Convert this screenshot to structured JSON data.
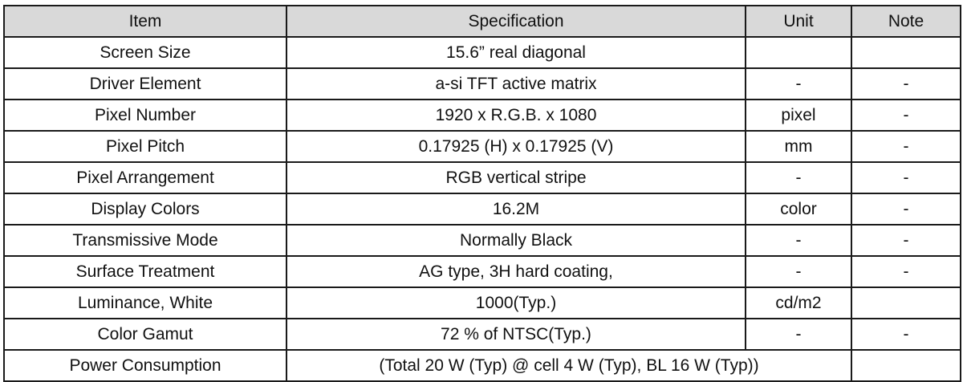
{
  "table": {
    "headers": {
      "item": "Item",
      "specification": "Specification",
      "unit": "Unit",
      "note": "Note"
    },
    "rows": [
      {
        "item": "Screen Size",
        "specification": "15.6” real diagonal",
        "unit": "",
        "note": ""
      },
      {
        "item": "Driver Element",
        "specification": "a-si TFT active matrix",
        "unit": "-",
        "note": "-"
      },
      {
        "item": "Pixel Number",
        "specification": "1920 x R.G.B. x 1080",
        "unit": "pixel",
        "note": "-"
      },
      {
        "item": "Pixel Pitch",
        "specification": "0.17925 (H) x 0.17925 (V)",
        "unit": "mm",
        "note": "-"
      },
      {
        "item": "Pixel Arrangement",
        "specification": "RGB vertical stripe",
        "unit": "-",
        "note": "-"
      },
      {
        "item": "Display Colors",
        "specification": "16.2M",
        "unit": "color",
        "note": "-"
      },
      {
        "item": "Transmissive Mode",
        "specification": "Normally Black",
        "unit": "-",
        "note": "-"
      },
      {
        "item": "Surface Treatment",
        "specification": "AG type, 3H hard coating,",
        "unit": "-",
        "note": "-"
      },
      {
        "item": "Luminance, White",
        "specification": "1000(Typ.)",
        "unit": "cd/m2",
        "note": ""
      },
      {
        "item": "Color Gamut",
        "specification": "72 % of NTSC(Typ.)",
        "unit": "-",
        "note": "-"
      },
      {
        "item": "Power Consumption",
        "specification": "(Total 20 W (Typ) @ cell 4 W (Typ), BL 16 W (Typ))",
        "unit": "",
        "note": ""
      }
    ]
  }
}
